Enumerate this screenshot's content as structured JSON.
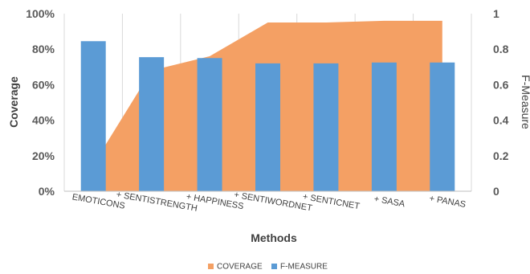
{
  "chart_data": {
    "type": "bar",
    "categories": [
      "EMOTICONS",
      "+ SENTISTRENGTH",
      "+ HAPPINESS",
      "+ SENTIWORDNET",
      "+ SENTICNET",
      "+ SASA",
      "+ PANAS"
    ],
    "series": [
      {
        "name": "COVERAGE",
        "type": "area",
        "axis": "left",
        "color": "#F4A064",
        "values": [
          0.15,
          0.68,
          0.76,
          0.95,
          0.95,
          0.96,
          0.96
        ]
      },
      {
        "name": "F-MEASURE",
        "type": "bar",
        "axis": "right",
        "color": "#5B9BD5",
        "values": [
          0.845,
          0.755,
          0.75,
          0.72,
          0.72,
          0.725,
          0.725
        ]
      }
    ],
    "xlabel": "Methods",
    "ylabel": "Coverage",
    "y2label": "F-Measure",
    "ylim": [
      0,
      1
    ],
    "y2lim": [
      0,
      1
    ],
    "yticks": [
      "0%",
      "20%",
      "40%",
      "60%",
      "80%",
      "100%"
    ],
    "y2ticks": [
      "0",
      "0.2",
      "0.4",
      "0.6",
      "0.8",
      "1"
    ],
    "grid": "vertical",
    "legend": "bottom"
  }
}
